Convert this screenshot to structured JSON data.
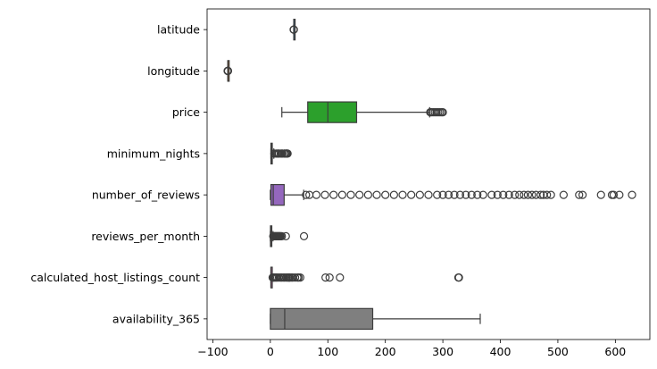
{
  "chart_data": {
    "type": "boxplot",
    "orientation": "horizontal",
    "title": "",
    "xlabel": "",
    "ylabel": "",
    "xlim": [
      -110,
      660
    ],
    "xticks": [
      -100,
      0,
      100,
      200,
      300,
      400,
      500,
      600
    ],
    "xtick_labels": [
      "−100",
      "0",
      "100",
      "200",
      "300",
      "400",
      "500",
      "600"
    ],
    "grid": false,
    "legend": "none",
    "categories": [
      "latitude",
      "longitude",
      "price",
      "minimum_nights",
      "number_of_reviews",
      "reviews_per_month",
      "calculated_host_listings_count",
      "availability_365"
    ],
    "boxes": [
      {
        "label": "latitude",
        "color": "#1f77b4",
        "q1": 40.69,
        "median": 40.72,
        "q3": 40.76,
        "whislo": 40.58,
        "whishi": 40.87,
        "outliers": [
          40.5,
          40.91
        ]
      },
      {
        "label": "longitude",
        "color": "#ff7f0e",
        "q1": -73.98,
        "median": -73.96,
        "q3": -73.94,
        "whislo": -74.04,
        "whishi": -73.87,
        "outliers": [
          -74.25,
          -74.2,
          -74.1,
          -73.85,
          -73.78,
          -73.71
        ]
      },
      {
        "label": "price",
        "color": "#2ca02c",
        "q1": 65,
        "median": 100,
        "q3": 150,
        "whislo": 20,
        "whishi": 277,
        "outliers": [
          278,
          280,
          283,
          286,
          289,
          292,
          295,
          298,
          300
        ]
      },
      {
        "label": "minimum_nights",
        "color": "#d62728",
        "q1": 1,
        "median": 2,
        "q3": 3,
        "whislo": 1,
        "whishi": 6,
        "outliers": [
          7,
          10,
          12,
          14,
          15,
          18,
          20,
          21,
          24,
          25,
          27,
          28,
          29,
          30
        ]
      },
      {
        "label": "number_of_reviews",
        "color": "#9467bd",
        "q1": 1,
        "median": 5,
        "q3": 24,
        "whislo": 0,
        "whishi": 58,
        "outliers": [
          62,
          68,
          80,
          95,
          110,
          125,
          140,
          155,
          170,
          185,
          200,
          215,
          230,
          245,
          260,
          275,
          290,
          300,
          310,
          320,
          330,
          340,
          350,
          360,
          370,
          385,
          395,
          405,
          415,
          425,
          433,
          441,
          448,
          455,
          462,
          470,
          475,
          481,
          488,
          510,
          537,
          543,
          575,
          594,
          597,
          607,
          629
        ]
      },
      {
        "label": "reviews_per_month",
        "color": "#8c564b",
        "q1": 0.2,
        "median": 0.7,
        "q3": 2.0,
        "whislo": 0.01,
        "whishi": 4.6,
        "outliers": [
          5,
          6,
          7,
          8,
          9,
          10,
          11,
          12,
          13,
          14,
          15,
          16,
          17,
          18,
          20,
          27,
          58.5
        ]
      },
      {
        "label": "calculated_host_listings_count",
        "color": "#e377c2",
        "q1": 1,
        "median": 1,
        "q3": 2,
        "whislo": 1,
        "whishi": 3,
        "outliers": [
          4,
          5,
          6,
          8,
          10,
          12,
          15,
          18,
          20,
          23,
          25,
          28,
          30,
          32,
          33,
          34,
          37,
          39,
          43,
          47,
          49,
          52,
          96,
          103,
          121,
          327,
          328
        ]
      },
      {
        "label": "availability_365",
        "color": "#7f7f7f",
        "q1": 0,
        "median": 25,
        "q3": 178,
        "whislo": 0,
        "whishi": 365,
        "outliers": []
      }
    ]
  }
}
